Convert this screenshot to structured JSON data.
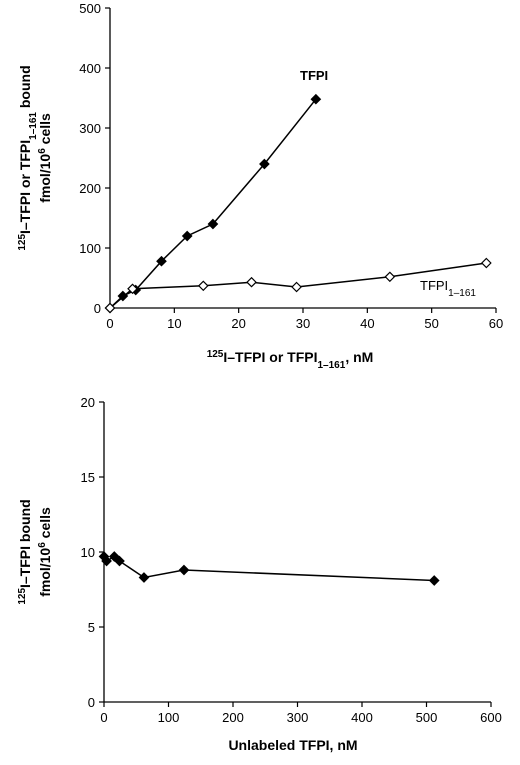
{
  "chart_data": [
    {
      "type": "line",
      "ylabel_lines": [
        "125I-TFPI or TFPI1-161 bound",
        "fmol/10^6 cells"
      ],
      "xlabel": "125I-TFPI or TFPI1-161, nM",
      "xlim": [
        0,
        60
      ],
      "ylim": [
        0,
        500
      ],
      "xticks": [
        0,
        10,
        20,
        30,
        40,
        50,
        60
      ],
      "yticks": [
        0,
        100,
        200,
        300,
        400,
        500
      ],
      "grid": false,
      "series": [
        {
          "name": "TFPI",
          "marker": "filled-diamond",
          "color": "#000000",
          "x": [
            0,
            2,
            4,
            8,
            12,
            16,
            24,
            32
          ],
          "y": [
            0,
            20,
            30,
            78,
            120,
            140,
            240,
            348
          ]
        },
        {
          "name": "TFPI1-161",
          "marker": "open-diamond",
          "color": "#000000",
          "x": [
            0,
            3.5,
            14.5,
            22,
            29,
            43.5,
            58.5
          ],
          "y": [
            0,
            32,
            37,
            43,
            35,
            52,
            75
          ]
        }
      ]
    },
    {
      "type": "line",
      "ylabel_lines": [
        "125I-TFPI bound",
        "fmol/10^6 cells"
      ],
      "xlabel": "Unlabeled TFPI, nM",
      "xlim": [
        0,
        600
      ],
      "ylim": [
        0,
        20
      ],
      "xticks": [
        0,
        100,
        200,
        300,
        400,
        500,
        600
      ],
      "yticks": [
        0,
        5,
        10,
        15,
        20
      ],
      "grid": false,
      "series": [
        {
          "marker": "filled-diamond",
          "color": "#000000",
          "x": [
            0,
            4,
            16,
            24,
            62,
            124,
            512
          ],
          "y": [
            9.7,
            9.4,
            9.7,
            9.4,
            8.3,
            8.8,
            8.1
          ]
        }
      ]
    }
  ]
}
